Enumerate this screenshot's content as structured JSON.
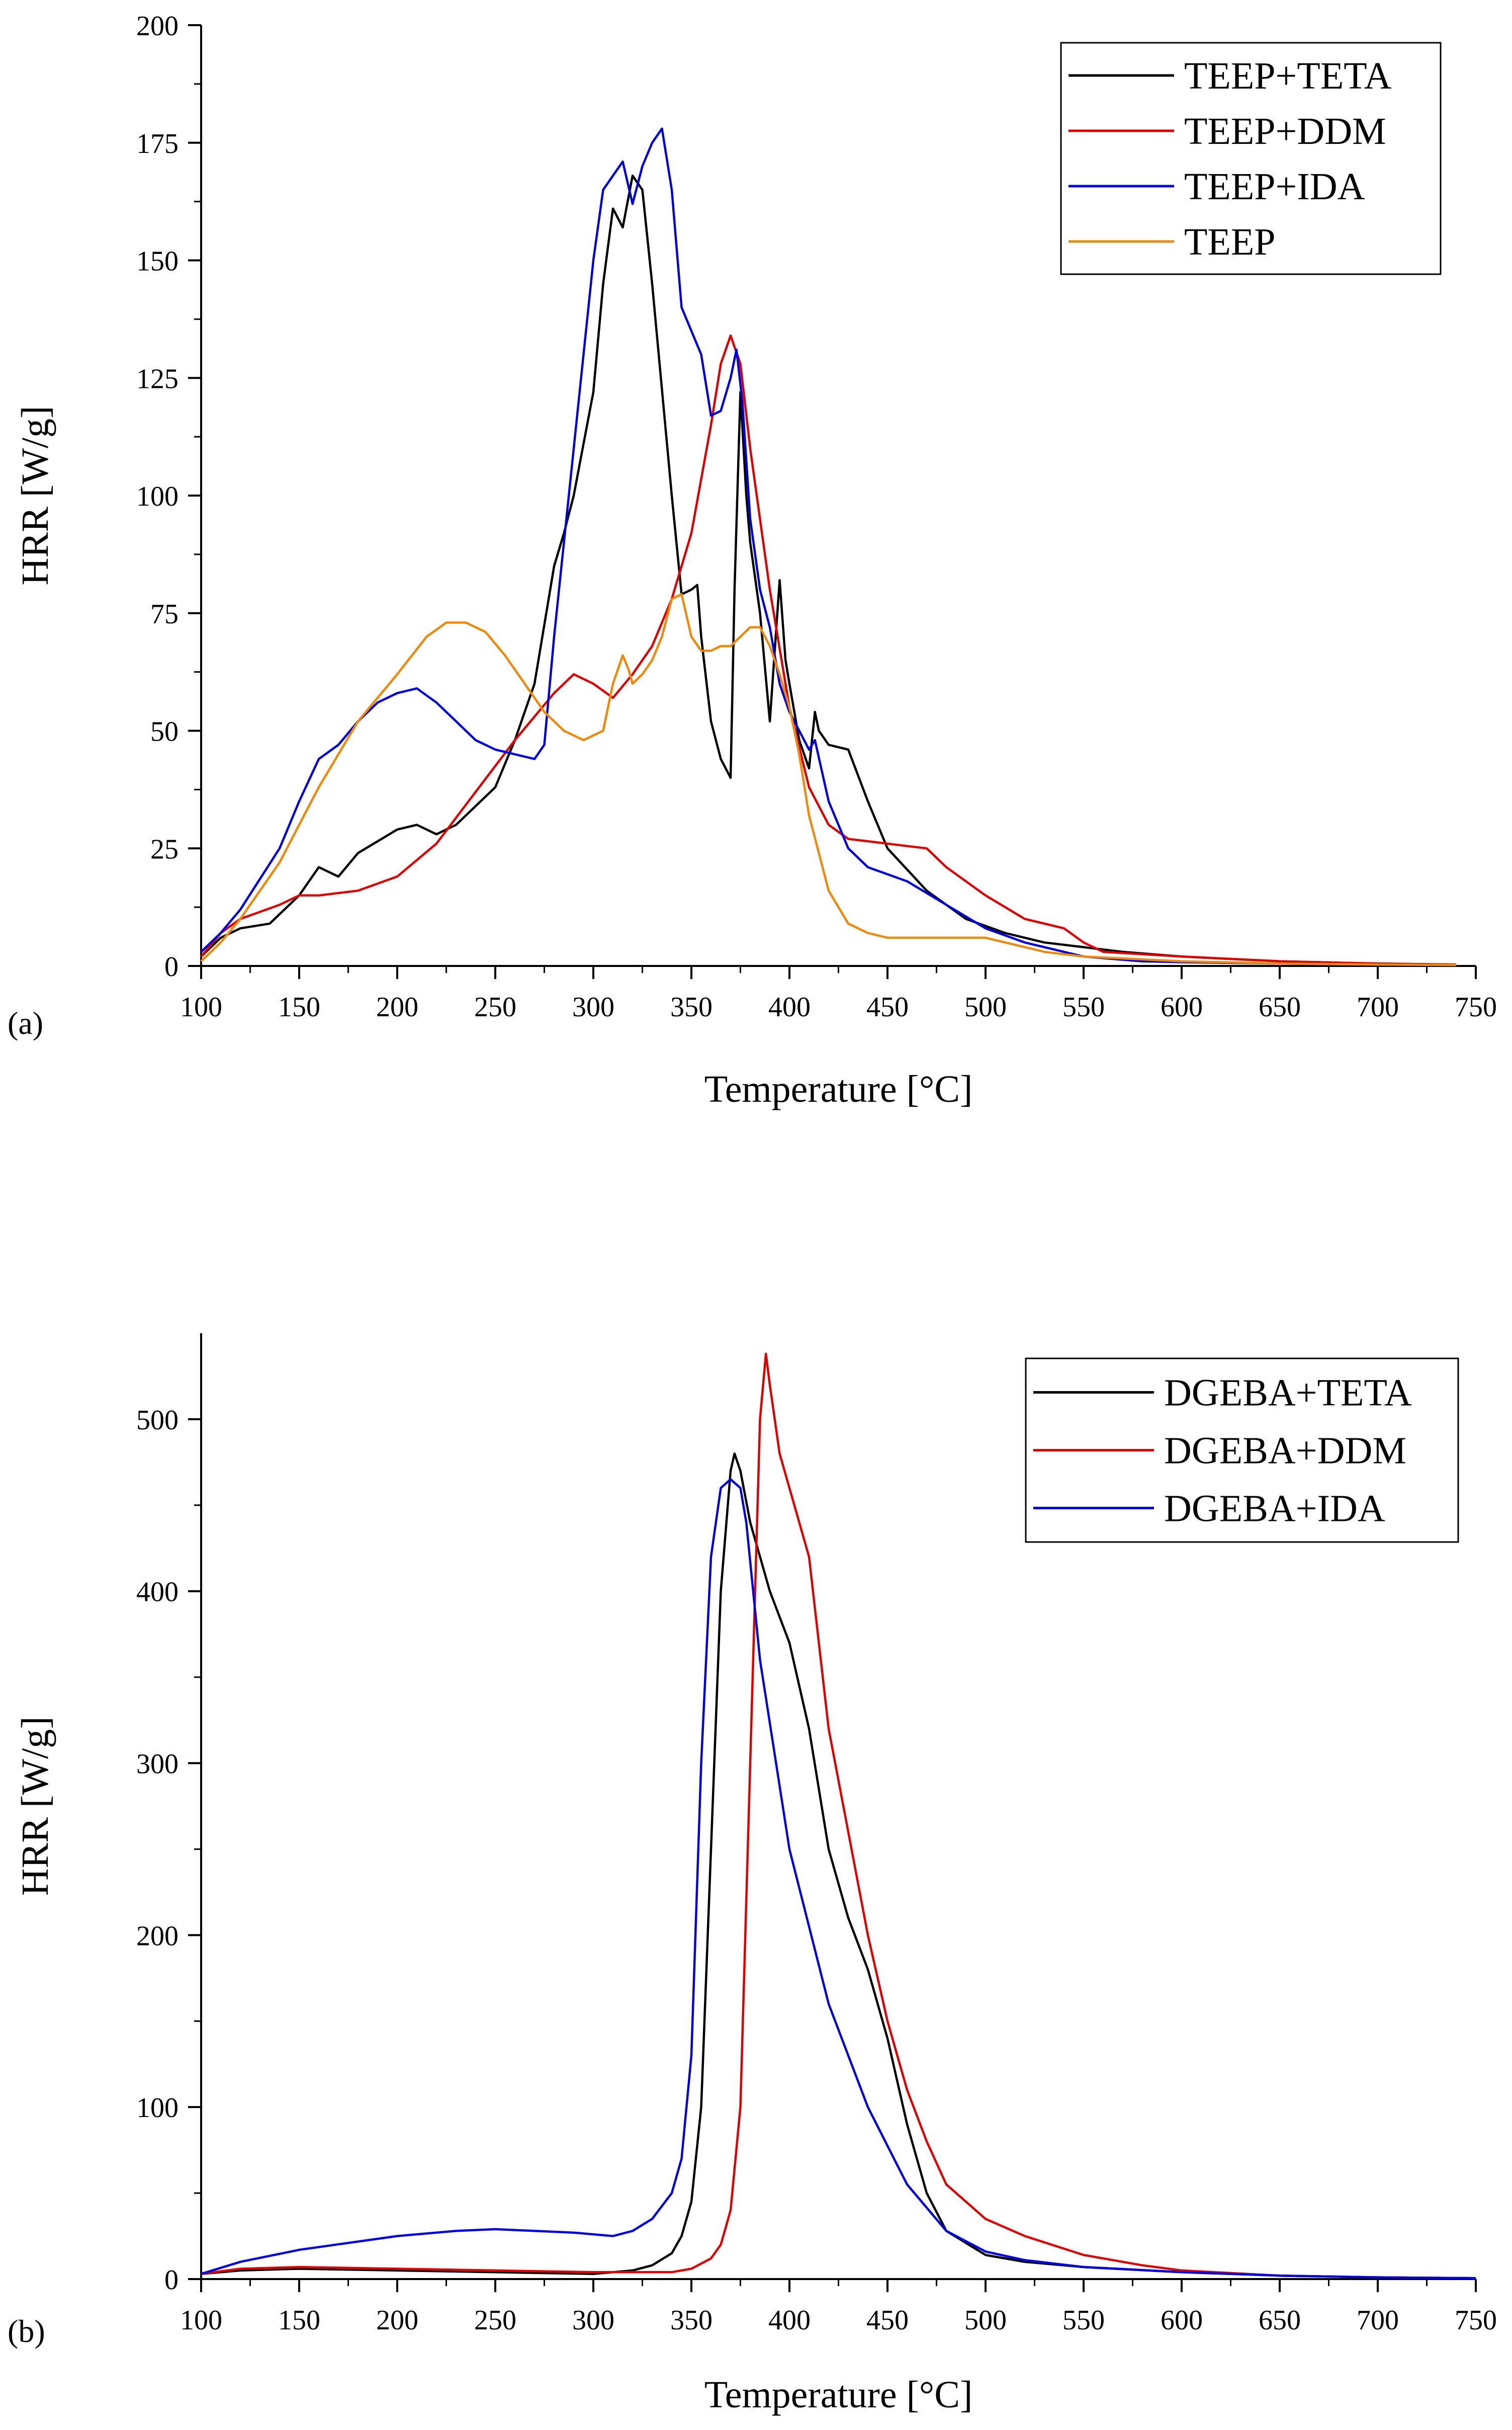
{
  "chart_data": [
    {
      "type": "line",
      "panel_label": "(a)",
      "xlabel": "Temperature [°C]",
      "ylabel": "HRR [W/g]",
      "xlim": [
        100,
        750
      ],
      "ylim": [
        0,
        200
      ],
      "xticks": [
        100,
        150,
        200,
        250,
        300,
        350,
        400,
        450,
        500,
        550,
        600,
        650,
        700,
        750
      ],
      "yticks": [
        0,
        25,
        50,
        75,
        100,
        125,
        150,
        175,
        200
      ],
      "legend_position": "top-right",
      "series": [
        {
          "name": "TEEP+TETA",
          "color": "#000000",
          "x": [
            100,
            110,
            120,
            135,
            150,
            160,
            170,
            180,
            200,
            210,
            220,
            230,
            250,
            260,
            270,
            280,
            285,
            290,
            300,
            305,
            310,
            315,
            320,
            325,
            330,
            340,
            345,
            350,
            353,
            355,
            360,
            365,
            370,
            372,
            375,
            378,
            380,
            385,
            390,
            395,
            398,
            400,
            405,
            410,
            413,
            415,
            420,
            430,
            440,
            450,
            470,
            490,
            510,
            530,
            550,
            570,
            600,
            650,
            700,
            740
          ],
          "y": [
            2,
            6,
            8,
            9,
            15,
            21,
            19,
            24,
            29,
            30,
            28,
            30,
            38,
            48,
            60,
            85,
            92,
            100,
            122,
            145,
            161,
            157,
            168,
            165,
            145,
            100,
            79,
            80,
            81,
            70,
            52,
            44,
            40,
            80,
            122,
            100,
            90,
            75,
            52,
            82,
            65,
            60,
            48,
            42,
            54,
            50,
            47,
            46,
            35,
            25,
            16,
            10,
            7,
            5,
            4,
            3,
            2,
            1,
            0.5,
            0.3
          ]
        },
        {
          "name": "TEEP+DDM",
          "color": "#e00000",
          "x": [
            100,
            110,
            120,
            140,
            150,
            160,
            180,
            200,
            220,
            240,
            260,
            280,
            290,
            300,
            310,
            320,
            330,
            340,
            350,
            360,
            365,
            370,
            375,
            380,
            390,
            400,
            410,
            420,
            430,
            450,
            470,
            480,
            500,
            520,
            540,
            550,
            560,
            600,
            650,
            700,
            740
          ],
          "y": [
            2,
            7,
            10,
            13,
            15,
            15,
            16,
            19,
            26,
            37,
            48,
            58,
            62,
            60,
            57,
            62,
            68,
            78,
            92,
            115,
            128,
            134,
            128,
            110,
            80,
            55,
            38,
            30,
            27,
            26,
            25,
            21,
            15,
            10,
            8,
            5,
            3,
            2,
            1,
            0.5,
            0.3
          ]
        },
        {
          "name": "TEEP+IDA",
          "color": "#0000e0",
          "x": [
            100,
            110,
            120,
            140,
            150,
            160,
            170,
            180,
            190,
            200,
            210,
            220,
            230,
            240,
            250,
            260,
            270,
            275,
            280,
            290,
            300,
            305,
            310,
            315,
            320,
            325,
            330,
            335,
            340,
            345,
            350,
            355,
            360,
            365,
            370,
            373,
            376,
            380,
            385,
            390,
            395,
            400,
            405,
            410,
            413,
            420,
            430,
            440,
            460,
            480,
            500,
            520,
            550,
            580,
            600,
            650,
            700,
            740
          ],
          "y": [
            3,
            7,
            12,
            25,
            35,
            44,
            47,
            52,
            56,
            58,
            59,
            56,
            52,
            48,
            46,
            45,
            44,
            47,
            70,
            110,
            150,
            165,
            168,
            171,
            162,
            170,
            175,
            178,
            165,
            140,
            135,
            130,
            117,
            118,
            125,
            131,
            120,
            95,
            80,
            72,
            60,
            54,
            50,
            46,
            48,
            35,
            25,
            21,
            18,
            13,
            8,
            5,
            2,
            1,
            0.8,
            0.5,
            0.3,
            0.2
          ]
        },
        {
          "name": "TEEP",
          "color": "#f0880a",
          "x": [
            100,
            110,
            120,
            140,
            160,
            180,
            200,
            215,
            225,
            235,
            245,
            255,
            265,
            275,
            285,
            295,
            305,
            310,
            315,
            318,
            320,
            325,
            330,
            335,
            340,
            345,
            350,
            355,
            360,
            365,
            370,
            375,
            380,
            385,
            390,
            395,
            400,
            405,
            410,
            420,
            430,
            440,
            450,
            460,
            470,
            480,
            490,
            500,
            510,
            520,
            530,
            550,
            600,
            650,
            700,
            740
          ],
          "y": [
            1,
            5,
            10,
            22,
            38,
            52,
            62,
            70,
            73,
            73,
            71,
            66,
            60,
            54,
            50,
            48,
            50,
            60,
            66,
            63,
            60,
            62,
            65,
            70,
            78,
            79,
            70,
            67,
            67,
            68,
            68,
            70,
            72,
            72,
            68,
            62,
            55,
            45,
            32,
            16,
            9,
            7,
            6,
            6,
            6,
            6,
            6,
            6,
            5,
            4,
            3,
            2,
            1,
            0.5,
            0.3,
            0.2
          ]
        }
      ]
    },
    {
      "type": "line",
      "panel_label": "(b)",
      "xlabel": "Temperature [°C]",
      "ylabel": "HRR [W/g]",
      "xlim": [
        100,
        750
      ],
      "ylim": [
        0,
        550
      ],
      "xticks": [
        100,
        150,
        200,
        250,
        300,
        350,
        400,
        450,
        500,
        550,
        600,
        650,
        700,
        750
      ],
      "yticks": [
        0,
        100,
        200,
        300,
        400,
        500
      ],
      "legend_position": "top-right",
      "series": [
        {
          "name": "DGEBA+TETA",
          "color": "#000000",
          "x": [
            100,
            120,
            150,
            200,
            250,
            300,
            320,
            330,
            340,
            345,
            350,
            355,
            360,
            365,
            370,
            372,
            375,
            380,
            390,
            400,
            410,
            420,
            430,
            440,
            450,
            460,
            470,
            480,
            500,
            520,
            550,
            600,
            650,
            700,
            750
          ],
          "y": [
            3,
            5,
            6,
            5,
            4,
            3,
            5,
            8,
            15,
            25,
            45,
            100,
            250,
            400,
            470,
            480,
            470,
            440,
            400,
            370,
            320,
            250,
            210,
            180,
            140,
            90,
            50,
            28,
            14,
            10,
            7,
            4,
            2,
            1,
            0.5
          ]
        },
        {
          "name": "DGEBA+DDM",
          "color": "#e00000",
          "x": [
            100,
            120,
            150,
            200,
            250,
            300,
            340,
            350,
            360,
            365,
            370,
            375,
            380,
            385,
            388,
            390,
            395,
            400,
            410,
            420,
            430,
            440,
            450,
            460,
            470,
            480,
            500,
            520,
            550,
            580,
            600,
            650,
            700,
            750
          ],
          "y": [
            3,
            6,
            7,
            6,
            5,
            4,
            4,
            6,
            12,
            20,
            40,
            100,
            300,
            500,
            538,
            520,
            480,
            460,
            420,
            320,
            260,
            200,
            150,
            110,
            80,
            55,
            35,
            25,
            14,
            8,
            5,
            2,
            1,
            0.5
          ]
        },
        {
          "name": "DGEBA+IDA",
          "color": "#0000e0",
          "x": [
            100,
            120,
            150,
            200,
            230,
            250,
            270,
            290,
            310,
            320,
            330,
            340,
            345,
            350,
            355,
            360,
            365,
            370,
            375,
            378,
            385,
            400,
            420,
            440,
            460,
            480,
            500,
            520,
            550,
            600,
            650,
            700,
            750
          ],
          "y": [
            3,
            10,
            17,
            25,
            28,
            29,
            28,
            27,
            25,
            28,
            35,
            50,
            70,
            130,
            300,
            420,
            460,
            465,
            460,
            440,
            360,
            250,
            160,
            100,
            55,
            28,
            16,
            11,
            7,
            4,
            2,
            1,
            0.5
          ]
        }
      ]
    }
  ]
}
